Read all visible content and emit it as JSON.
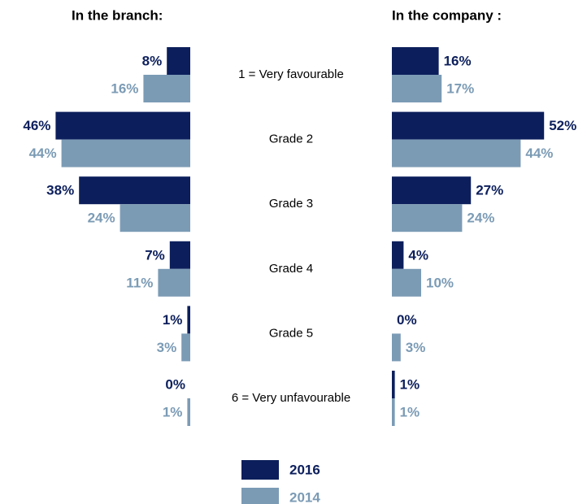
{
  "chart_data": [
    {
      "type": "bar",
      "title": "In the branch:",
      "categories": [
        "1 = Very favourable",
        "Grade 2",
        "Grade 3",
        "Grade 4",
        "Grade 5",
        "6 = Very unfavourable"
      ],
      "series": [
        {
          "name": "2016",
          "color": "#0c1f5c",
          "values": [
            8,
            46,
            38,
            7,
            1,
            0
          ],
          "value_labels": [
            "8%",
            "46%",
            "38%",
            "7%",
            "1%",
            "0%"
          ]
        },
        {
          "name": "2014",
          "color": "#7b9bb5",
          "values": [
            16,
            44,
            24,
            11,
            3,
            1
          ],
          "value_labels": [
            "16%",
            "44%",
            "24%",
            "11%",
            "3%",
            "1%"
          ]
        }
      ]
    },
    {
      "type": "bar",
      "title": "In the company :",
      "series": [
        {
          "color": "#0c1f5c",
          "values": [
            16,
            52,
            27,
            4,
            0,
            1
          ],
          "value_labels": [
            "16%",
            "52%",
            "27%",
            "4%",
            "0%",
            "1%"
          ]
        },
        {
          "color": "#7b9bb5",
          "values": [
            17,
            44,
            24,
            10,
            3,
            1
          ],
          "value_labels": [
            "17%",
            "44%",
            "24%",
            "10%",
            "3%",
            "1%"
          ]
        }
      ]
    }
  ]
}
